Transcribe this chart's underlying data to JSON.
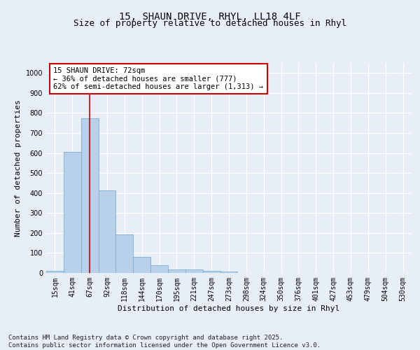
{
  "title_line1": "15, SHAUN DRIVE, RHYL, LL18 4LF",
  "title_line2": "Size of property relative to detached houses in Rhyl",
  "xlabel": "Distribution of detached houses by size in Rhyl",
  "ylabel": "Number of detached properties",
  "bar_color": "#b8d0ea",
  "bar_edge_color": "#7aadd4",
  "categories": [
    "15sqm",
    "41sqm",
    "67sqm",
    "92sqm",
    "118sqm",
    "144sqm",
    "170sqm",
    "195sqm",
    "221sqm",
    "247sqm",
    "273sqm",
    "298sqm",
    "324sqm",
    "350sqm",
    "376sqm",
    "401sqm",
    "427sqm",
    "453sqm",
    "479sqm",
    "504sqm",
    "530sqm"
  ],
  "values": [
    12,
    605,
    775,
    413,
    192,
    80,
    40,
    17,
    17,
    12,
    8,
    0,
    0,
    0,
    0,
    0,
    0,
    0,
    0,
    0,
    0
  ],
  "ylim": [
    0,
    1050
  ],
  "yticks": [
    0,
    100,
    200,
    300,
    400,
    500,
    600,
    700,
    800,
    900,
    1000
  ],
  "vline_x": 2,
  "vline_color": "#cc0000",
  "annotation_text": "15 SHAUN DRIVE: 72sqm\n← 36% of detached houses are smaller (777)\n62% of semi-detached houses are larger (1,313) →",
  "annotation_box_color": "#ffffff",
  "annotation_box_edge": "#cc0000",
  "footnote": "Contains HM Land Registry data © Crown copyright and database right 2025.\nContains public sector information licensed under the Open Government Licence v3.0.",
  "bg_color": "#e8eef8",
  "grid_color": "#ffffff",
  "title_fontsize": 10,
  "subtitle_fontsize": 9,
  "axis_label_fontsize": 8,
  "tick_fontsize": 7,
  "annotation_fontsize": 7.5,
  "footnote_fontsize": 6.5
}
